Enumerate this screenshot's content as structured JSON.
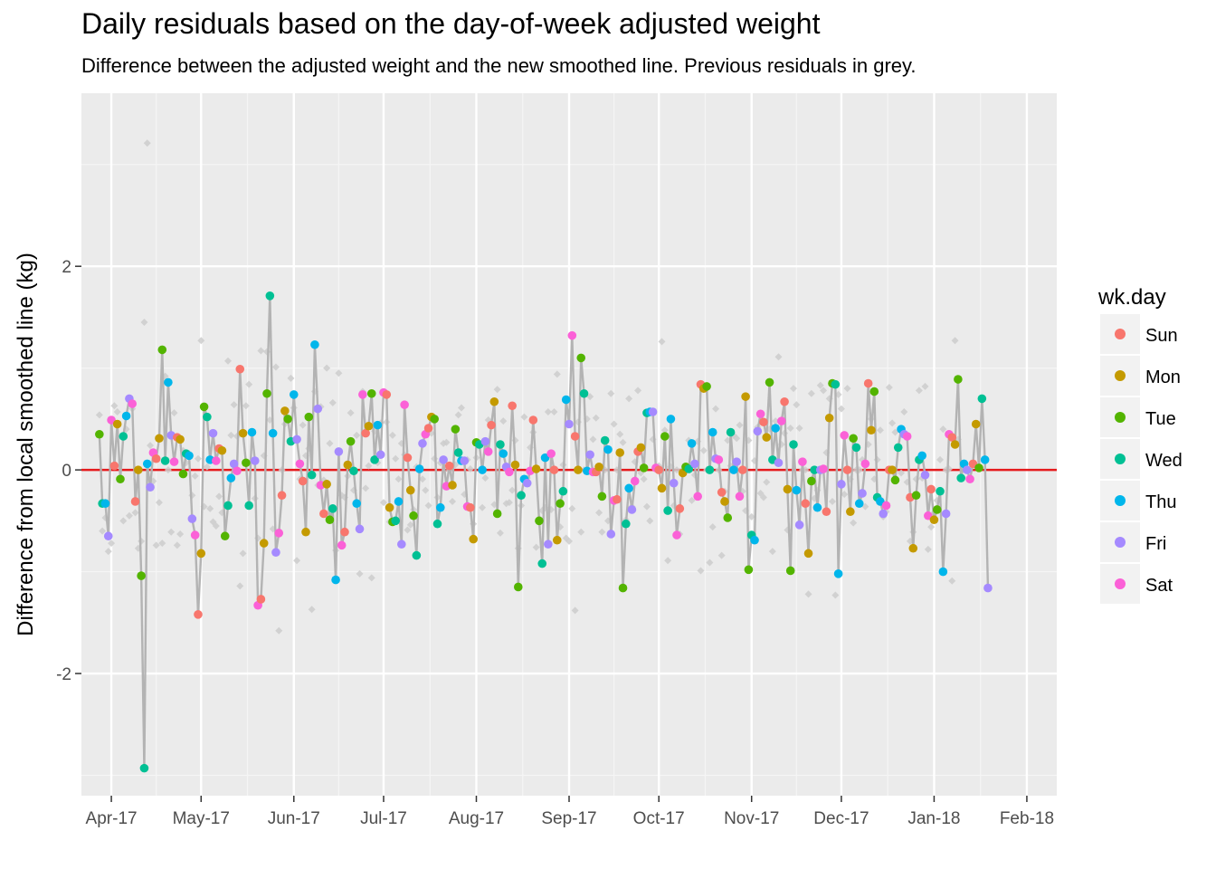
{
  "chart_data": {
    "type": "scatter",
    "title": "Daily residuals based on the day-of-week adjusted weight",
    "subtitle": "Difference between the adjusted weight and the new smoothed line. Previous residuals in grey.",
    "xlabel": "",
    "ylabel": "Difference from local smoothed line (kg)",
    "x_start": "2017-03-28",
    "x_ticks": [
      "Apr-17",
      "May-17",
      "Jun-17",
      "Jul-17",
      "Aug-17",
      "Sep-17",
      "Oct-17",
      "Nov-17",
      "Dec-17",
      "Jan-18",
      "Feb-18"
    ],
    "y_ticks": [
      -2,
      0,
      2
    ],
    "ylim": [
      -3.2,
      3.7
    ],
    "grid": true,
    "reference_line": {
      "y": 0,
      "color": "#E41A1C"
    },
    "legend": {
      "title": "wk.day",
      "position": "right",
      "entries": [
        {
          "label": "Sun",
          "color": "#F8766D"
        },
        {
          "label": "Mon",
          "color": "#C49A00"
        },
        {
          "label": "Tue",
          "color": "#53B400"
        },
        {
          "label": "Wed",
          "color": "#00C094"
        },
        {
          "label": "Thu",
          "color": "#00B6EB"
        },
        {
          "label": "Fri",
          "color": "#A58AFF"
        },
        {
          "label": "Sat",
          "color": "#FB61D7"
        }
      ]
    },
    "series": [
      {
        "values": [
          0.35,
          -0.33,
          -0.33,
          -0.65,
          0.49,
          0.04,
          0.45,
          -0.09,
          0.33,
          0.53,
          0.7,
          0.65,
          -0.31,
          0.0,
          -1.04,
          -2.93,
          0.06,
          -0.17,
          0.17,
          0.11,
          0.31,
          1.18,
          0.09,
          0.86,
          0.34,
          0.08,
          0.32,
          0.3,
          -0.04,
          0.16,
          0.14,
          -0.48,
          -0.64,
          -1.42,
          -0.82,
          0.62,
          0.52,
          0.1,
          0.36,
          0.09,
          0.21,
          0.19,
          -0.65,
          -0.35,
          -0.08,
          0.06,
          -0.01,
          0.99,
          0.36,
          0.07,
          -0.35,
          0.37,
          0.09,
          -1.33,
          -1.27,
          -0.72,
          0.75,
          1.71,
          0.36,
          -0.81,
          -0.62,
          -0.25,
          0.58,
          0.5,
          0.28,
          0.74,
          0.3,
          0.06,
          -0.11,
          -0.61,
          0.52,
          -0.05,
          1.23,
          0.6,
          -0.15,
          -0.43,
          -0.14,
          -0.49,
          -0.38,
          -1.08,
          0.18,
          -0.74,
          -0.61,
          0.05,
          0.28,
          -0.01,
          -0.33,
          -0.58,
          0.74,
          0.36,
          0.43,
          0.75,
          0.1,
          0.44,
          0.15,
          0.76,
          0.74,
          -0.37,
          -0.51,
          -0.5,
          -0.31,
          -0.73,
          0.64,
          0.12,
          -0.2,
          -0.45,
          -0.84,
          0.01,
          0.26,
          0.35,
          0.41,
          0.52,
          0.5,
          -0.53,
          -0.37,
          0.1,
          -0.16,
          0.04,
          -0.15,
          0.4,
          0.17,
          0.09,
          0.09,
          -0.36,
          -0.37,
          -0.68,
          0.27,
          0.25,
          0.0,
          0.28,
          0.18,
          0.44,
          0.67,
          -0.43,
          0.25,
          0.16,
          0.03,
          -0.02,
          0.63,
          0.05,
          -1.15,
          -0.25,
          -0.09,
          -0.13,
          -0.01,
          0.49,
          0.01,
          -0.5,
          -0.92,
          0.12,
          -0.73,
          0.16,
          0.0,
          -0.69,
          -0.33,
          -0.21,
          0.69,
          0.45,
          1.32,
          0.33,
          0.0,
          1.1,
          0.75,
          -0.01,
          0.15,
          -0.02,
          -0.02,
          0.03,
          -0.26,
          0.29,
          0.2,
          -0.63,
          -0.3,
          -0.29,
          0.17,
          -1.16,
          -0.53,
          -0.18,
          -0.39,
          -0.11,
          0.18,
          0.22,
          0.02,
          0.56,
          0.57,
          0.57,
          0.02,
          0.0,
          -0.18,
          0.33,
          -0.4,
          0.5,
          -0.13,
          -0.64,
          -0.38,
          -0.03,
          0.03,
          0.01,
          0.26,
          0.06,
          -0.26,
          0.84,
          0.8,
          0.82,
          0.0,
          0.37,
          0.11,
          0.1,
          -0.22,
          -0.31,
          -0.47,
          0.37,
          0.0,
          0.08,
          -0.26,
          0.0,
          0.72,
          -0.98,
          -0.64,
          -0.69,
          0.38,
          0.55,
          0.47,
          0.32,
          0.86,
          0.1,
          0.41,
          0.07,
          0.48,
          0.67,
          -0.19,
          -0.99,
          0.25,
          -0.2,
          -0.54,
          0.08,
          -0.33,
          -0.82,
          -0.11,
          0.0,
          -0.37,
          0.0,
          0.01,
          -0.41,
          0.51,
          0.85,
          0.84,
          -1.02,
          -0.14,
          0.34,
          0.0,
          -0.41,
          0.31,
          0.22,
          -0.33,
          -0.23,
          0.06,
          0.85,
          0.39,
          0.77,
          -0.27,
          -0.31,
          -0.43,
          -0.35,
          0.0,
          0.0,
          -0.1,
          0.22,
          0.4,
          0.35,
          0.33,
          -0.27,
          -0.77,
          -0.25,
          0.1,
          0.14,
          -0.05,
          -0.45,
          -0.19,
          -0.49,
          -0.39,
          -0.21,
          -1.0,
          -0.43,
          0.35,
          0.32,
          0.25,
          0.89,
          -0.08,
          0.06,
          0.0,
          -0.09,
          0.06,
          0.45,
          0.02,
          0.7,
          0.1,
          -1.16
        ]
      },
      {
        "name": "Previous residuals",
        "values": [
          0.54,
          -0.6,
          -0.47,
          -0.8,
          -0.72,
          0.63,
          0.57,
          -0.08,
          -0.5,
          0.4,
          -0.45,
          0.6,
          -0.42,
          -0.77,
          -0.7,
          1.45,
          3.21,
          0.24,
          -0.11,
          -0.74,
          -0.32,
          -0.72,
          0.92,
          0.0,
          -0.61,
          0.56,
          -0.74,
          -0.63,
          0.19,
          0.07,
          0.16,
          -0.25,
          -0.06,
          0.11,
          1.27,
          -0.36,
          0.03,
          -0.38,
          -0.51,
          -0.55,
          -0.26,
          -0.42,
          -0.65,
          1.07,
          0.34,
          0.64,
          0.33,
          -1.14,
          -0.82,
          0.63,
          0.84,
          0.35,
          -0.28,
          -0.67,
          1.17,
          0.14,
          1.16,
          0.49,
          -0.58,
          1.01,
          -1.58,
          0.0,
          0.45,
          0.51,
          0.9,
          0.61,
          -0.89,
          -0.09,
          0.44,
          0.14,
          0.21,
          -1.37,
          0.77,
          -0.15,
          0.62,
          -0.1,
          1.0,
          0.26,
          0.66,
          -0.79,
          0.95,
          -0.25,
          -0.27,
          -0.06,
          0.56,
          -0.2,
          0.34,
          -1.02,
          0.77,
          -0.18,
          0.04,
          -1.06,
          0.38,
          0.07,
          0.46,
          -0.32,
          0.47,
          -0.51,
          0.34,
          0.11,
          -0.09,
          0.26,
          0.15,
          -0.59,
          -0.54,
          -0.39,
          0.03,
          0.02,
          -0.09,
          -0.2,
          -0.35,
          0.36,
          0.11,
          -0.27,
          0.07,
          0.26,
          0.27,
          0.0,
          -0.31,
          0.05,
          0.54,
          0.61,
          -0.24,
          0.1,
          0.01,
          -0.53,
          0.12,
          0.26,
          -0.37,
          -0.08,
          0.49,
          0.43,
          -0.34,
          0.79,
          -0.62,
          0.48,
          -0.33,
          -0.32,
          -0.2,
          0.29,
          -0.77,
          -0.35,
          0.52,
          -0.08,
          0.22,
          0.37,
          -0.76,
          -0.48,
          -0.4,
          -0.37,
          0.57,
          -0.39,
          0.57,
          0.94,
          -0.56,
          0.05,
          -0.67,
          -0.7,
          -0.38,
          -1.38,
          0.47,
          -0.61,
          0.0,
          0.5,
          0.72,
          0.3,
          0.51,
          -0.42,
          -0.61,
          0.0,
          -0.5,
          0.75,
          0.45,
          0.0,
          0.35,
          0.27,
          -0.49,
          0.7,
          -0.36,
          0.08,
          0.78,
          -0.03,
          -0.09,
          -0.36,
          -0.5,
          0.3,
          0.01,
          0.04,
          1.26,
          0.39,
          -0.89,
          0.03,
          -0.35,
          0.0,
          -0.63,
          0.0,
          -0.01,
          0.29,
          -0.3,
          -0.05,
          0.28,
          -0.99,
          0.19,
          0.0,
          -0.91,
          -0.56,
          0.6,
          0.0,
          -0.84,
          -0.21,
          0.29,
          0.04,
          0.34,
          0.31,
          0.44,
          -0.21,
          -0.4,
          0.29,
          -0.46,
          0.09,
          0.42,
          -0.23,
          -0.27,
          -0.12,
          0.4,
          -0.8,
          0.48,
          1.11,
          0.25,
          0.36,
          -0.59,
          0.41,
          0.8,
          0.64,
          0.41,
          0.0,
          0.0,
          -1.22,
          0.75,
          -0.28,
          -0.2,
          0.83,
          0.78,
          0.17,
          0.7,
          -0.31,
          -1.23,
          0.74,
          0.6,
          -0.24,
          0.8,
          -0.09,
          -0.52,
          0.0,
          0.0,
          0.1,
          -0.36,
          0.25,
          0.5,
          -0.09,
          0.1,
          0.39,
          -0.46,
          -0.41,
          0.81,
          0.46,
          0.37,
          0.22,
          -0.03,
          0.57,
          -0.12,
          -0.7,
          -0.61,
          -0.09,
          0.78,
          -0.08,
          0.82,
          -0.78,
          -0.56,
          -0.42,
          -0.3,
          0.1,
          0.4,
          0.0,
          0.01,
          -1.09,
          1.27,
          0.3
        ]
      }
    ]
  }
}
